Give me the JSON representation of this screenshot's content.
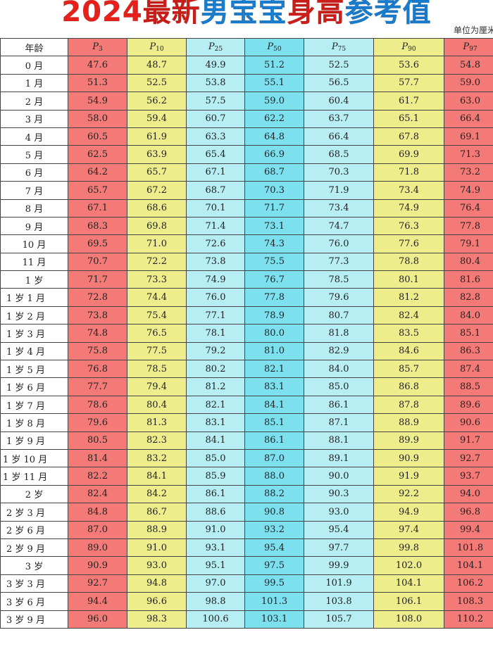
{
  "title": {
    "part1": "2024最新",
    "part2": "男宝宝",
    "part3": "身高",
    "part4": "参考值"
  },
  "unit_note": "单位为厘米",
  "columns": [
    {
      "label": "年龄"
    },
    {
      "p": "P",
      "sub": "3"
    },
    {
      "p": "P",
      "sub": "10"
    },
    {
      "p": "P",
      "sub": "25"
    },
    {
      "p": "P",
      "sub": "50"
    },
    {
      "p": "P",
      "sub": "75"
    },
    {
      "p": "P",
      "sub": "90"
    },
    {
      "p": "P",
      "sub": "97"
    }
  ],
  "rows": [
    {
      "age": "0 月",
      "v": [
        "47.6",
        "48.7",
        "49.9",
        "51.2",
        "52.5",
        "53.6",
        "54.8"
      ]
    },
    {
      "age": "1 月",
      "v": [
        "51.3",
        "52.5",
        "53.8",
        "55.1",
        "56.5",
        "57.7",
        "59.0"
      ]
    },
    {
      "age": "2 月",
      "v": [
        "54.9",
        "56.2",
        "57.5",
        "59.0",
        "60.4",
        "61.7",
        "63.0"
      ]
    },
    {
      "age": "3 月",
      "v": [
        "58.0",
        "59.4",
        "60.7",
        "62.2",
        "63.7",
        "65.1",
        "66.4"
      ]
    },
    {
      "age": "4 月",
      "v": [
        "60.5",
        "61.9",
        "63.3",
        "64.8",
        "66.4",
        "67.8",
        "69.1"
      ]
    },
    {
      "age": "5 月",
      "v": [
        "62.5",
        "63.9",
        "65.4",
        "66.9",
        "68.5",
        "69.9",
        "71.3"
      ]
    },
    {
      "age": "6 月",
      "v": [
        "64.2",
        "65.7",
        "67.1",
        "68.7",
        "70.3",
        "71.8",
        "73.2"
      ]
    },
    {
      "age": "7 月",
      "v": [
        "65.7",
        "67.2",
        "68.7",
        "70.3",
        "71.9",
        "73.4",
        "74.9"
      ]
    },
    {
      "age": "8 月",
      "v": [
        "67.1",
        "68.6",
        "70.1",
        "71.7",
        "73.4",
        "74.9",
        "76.4"
      ]
    },
    {
      "age": "9 月",
      "v": [
        "68.3",
        "69.8",
        "71.4",
        "73.1",
        "74.7",
        "76.3",
        "77.8"
      ]
    },
    {
      "age": "10 月",
      "v": [
        "69.5",
        "71.0",
        "72.6",
        "74.3",
        "76.0",
        "77.6",
        "79.1"
      ]
    },
    {
      "age": "11 月",
      "v": [
        "70.7",
        "72.2",
        "73.8",
        "75.5",
        "77.3",
        "78.8",
        "80.4"
      ]
    },
    {
      "age": "1 岁",
      "v": [
        "71.7",
        "73.3",
        "74.9",
        "76.7",
        "78.5",
        "80.1",
        "81.6"
      ]
    },
    {
      "age": "1 岁 1 月",
      "v": [
        "72.8",
        "74.4",
        "76.0",
        "77.8",
        "79.6",
        "81.2",
        "82.8"
      ]
    },
    {
      "age": "1 岁 2 月",
      "v": [
        "73.8",
        "75.4",
        "77.1",
        "78.9",
        "80.7",
        "82.4",
        "84.0"
      ]
    },
    {
      "age": "1 岁 3 月",
      "v": [
        "74.8",
        "76.5",
        "78.1",
        "80.0",
        "81.8",
        "83.5",
        "85.1"
      ]
    },
    {
      "age": "1 岁 4 月",
      "v": [
        "75.8",
        "77.5",
        "79.2",
        "81.0",
        "82.9",
        "84.6",
        "86.3"
      ]
    },
    {
      "age": "1 岁 5 月",
      "v": [
        "76.8",
        "78.5",
        "80.2",
        "82.1",
        "84.0",
        "85.7",
        "87.4"
      ]
    },
    {
      "age": "1 岁 6 月",
      "v": [
        "77.7",
        "79.4",
        "81.2",
        "83.1",
        "85.0",
        "86.8",
        "88.5"
      ]
    },
    {
      "age": "1 岁 7 月",
      "v": [
        "78.6",
        "80.4",
        "82.1",
        "84.1",
        "86.1",
        "87.8",
        "89.6"
      ]
    },
    {
      "age": "1 岁 8 月",
      "v": [
        "79.6",
        "81.3",
        "83.1",
        "85.1",
        "87.1",
        "88.9",
        "90.6"
      ]
    },
    {
      "age": "1 岁 9 月",
      "v": [
        "80.5",
        "82.3",
        "84.1",
        "86.1",
        "88.1",
        "89.9",
        "91.7"
      ]
    },
    {
      "age": "1 岁 10 月",
      "v": [
        "81.4",
        "83.2",
        "85.0",
        "87.0",
        "89.1",
        "90.9",
        "92.7"
      ]
    },
    {
      "age": "1 岁 11 月",
      "v": [
        "82.2",
        "84.1",
        "85.9",
        "88.0",
        "90.0",
        "91.9",
        "93.7"
      ]
    },
    {
      "age": "2 岁",
      "v": [
        "82.4",
        "84.2",
        "86.1",
        "88.2",
        "90.3",
        "92.2",
        "94.0"
      ]
    },
    {
      "age": "2 岁 3 月",
      "v": [
        "84.8",
        "86.7",
        "88.6",
        "90.8",
        "93.0",
        "94.9",
        "96.8"
      ]
    },
    {
      "age": "2 岁 6 月",
      "v": [
        "87.0",
        "88.9",
        "91.0",
        "93.2",
        "95.4",
        "97.4",
        "99.4"
      ]
    },
    {
      "age": "2 岁 9 月",
      "v": [
        "89.0",
        "91.0",
        "93.1",
        "95.4",
        "97.7",
        "99.8",
        "101.8"
      ]
    },
    {
      "age": "3 岁",
      "v": [
        "90.9",
        "93.0",
        "95.1",
        "97.5",
        "99.9",
        "102.0",
        "104.1"
      ]
    },
    {
      "age": "3 岁 3 月",
      "v": [
        "92.7",
        "94.8",
        "97.0",
        "99.5",
        "101.9",
        "104.1",
        "106.2"
      ]
    },
    {
      "age": "3 岁 6 月",
      "v": [
        "94.4",
        "96.6",
        "98.8",
        "101.3",
        "103.8",
        "106.1",
        "108.3"
      ]
    },
    {
      "age": "3 岁 9 月",
      "v": [
        "96.0",
        "98.3",
        "100.6",
        "103.1",
        "105.7",
        "108.0",
        "110.2"
      ]
    }
  ],
  "colors": {
    "title_red": "#e8201c",
    "title_blue": "#1b8be6",
    "col_red": "#f47a78",
    "col_yellow": "#eeed8c",
    "col_cyan_light": "#b6eef4",
    "col_cyan_dark": "#7de0ef"
  }
}
